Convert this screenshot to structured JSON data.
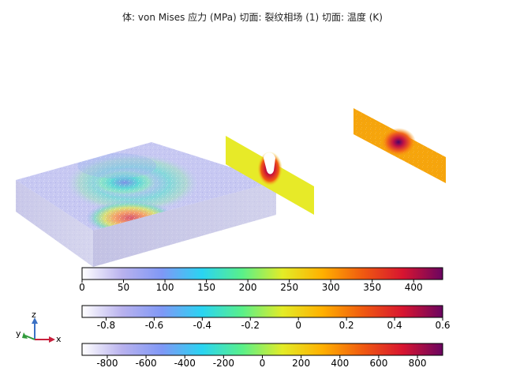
{
  "title": "体: von Mises 应力 (MPa)  切面: 裂纹相场 (1)  切面: 温度 (K)",
  "colorbars": [
    {
      "name": "von-mises-stress",
      "ticks": [
        "0",
        "50",
        "100",
        "150",
        "200",
        "250",
        "300",
        "350",
        "400"
      ],
      "tick_values": [
        0,
        50,
        100,
        150,
        200,
        250,
        300,
        350,
        400
      ],
      "range": [
        0,
        435
      ]
    },
    {
      "name": "crack-phase-field",
      "ticks": [
        "-0.8",
        "-0.6",
        "-0.4",
        "-0.2",
        "0",
        "0.2",
        "0.4",
        "0.6"
      ],
      "tick_values": [
        -0.8,
        -0.6,
        -0.4,
        -0.2,
        0,
        0.2,
        0.4,
        0.6
      ],
      "range": [
        -0.9,
        0.6
      ]
    },
    {
      "name": "temperature",
      "ticks": [
        "-800",
        "-600",
        "-400",
        "-200",
        "0",
        "200",
        "400",
        "600",
        "800"
      ],
      "tick_values": [
        -800,
        -600,
        -400,
        -200,
        0,
        200,
        400,
        600,
        800
      ],
      "range": [
        -930,
        930
      ]
    }
  ],
  "colormap": [
    "#ffffff",
    "#b9b2ee",
    "#7f98f6",
    "#2ad4f2",
    "#59f08a",
    "#e3ec27",
    "#ffb000",
    "#f05a10",
    "#d81530",
    "#6a0560"
  ],
  "axis_triad": {
    "z": "z",
    "y": "y",
    "x": "x"
  }
}
